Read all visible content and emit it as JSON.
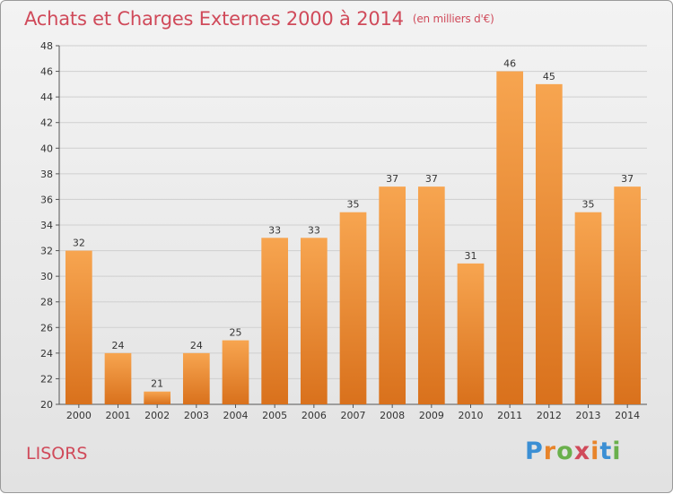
{
  "header": {
    "title": "Achats et Charges Externes 2000 à 2014",
    "subtitle": "(en milliers d'€)"
  },
  "footer": {
    "commune": "LISORS",
    "logo_text": "Proxiti"
  },
  "colors": {
    "title": "#d04a5a",
    "bar_top": "#f7a550",
    "bar_bottom": "#d9711c",
    "grid": "#cfcfcf"
  },
  "chart_data": {
    "type": "bar",
    "title": "Achats et Charges Externes 2000 à 2014",
    "subtitle": "(en milliers d'€)",
    "categories": [
      "2000",
      "2001",
      "2002",
      "2003",
      "2004",
      "2005",
      "2006",
      "2007",
      "2008",
      "2009",
      "2010",
      "2011",
      "2012",
      "2013",
      "2014"
    ],
    "values": [
      32,
      24,
      21,
      24,
      25,
      33,
      33,
      35,
      37,
      37,
      31,
      46,
      45,
      35,
      37
    ],
    "ylim": [
      20,
      48
    ],
    "yticks": [
      20,
      22,
      24,
      26,
      28,
      30,
      32,
      34,
      36,
      38,
      40,
      42,
      44,
      46,
      48
    ],
    "grid": true,
    "xlabel": "",
    "ylabel": ""
  }
}
